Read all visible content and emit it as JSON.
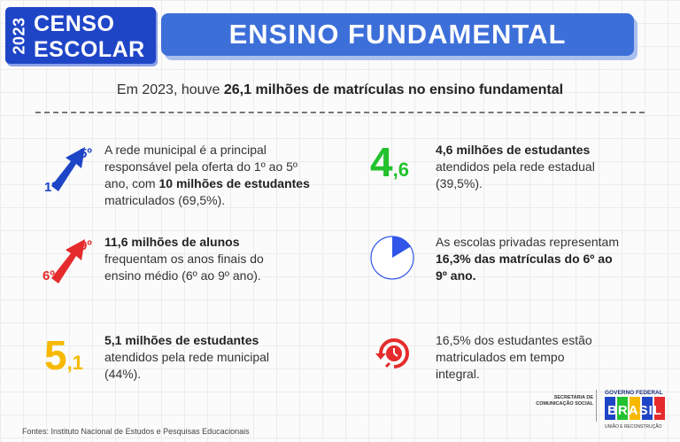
{
  "badge": {
    "year": "2023",
    "line1": "CENSO",
    "line2": "ESCOLAR"
  },
  "title": "ENSINO FUNDAMENTAL",
  "headline": {
    "prefix": "Em 2023, houve ",
    "bold": "26,1 milhões de matrículas no ensino fundamental"
  },
  "items": [
    {
      "icon_name": "arrow-1-to-5-icon",
      "icon_from": "1º",
      "icon_to": "5º",
      "t1": "A rede municipal é a principal responsável pela oferta do 1º ao 5º ano, com ",
      "b1": "10 milhões de estudantes",
      "t2": " matriculados (69,5%)."
    },
    {
      "icon_name": "number-4-6-icon",
      "big_int": "4",
      "big_dec": ",6",
      "b1": "4,6 milhões de estudantes",
      "t2": " atendidos pela rede estadual (39,5%)."
    },
    {
      "icon_name": "arrow-6-to-9-icon",
      "icon_from": "6º",
      "icon_to": "9º",
      "b1": "11,6 milhões de alunos",
      "t2": " frequentam os anos finais do ensino médio (6º ao 9º ano)."
    },
    {
      "icon_name": "pie-16-3-icon",
      "pie_fraction": 0.163,
      "t1": "As escolas privadas representam ",
      "b1": "16,3% das matrículas do 6º ao 9º ano."
    },
    {
      "icon_name": "number-5-1-icon",
      "big_int": "5",
      "big_dec": ",1",
      "b1": "5,1 milhões de estudantes",
      "t2": " atendidos pela rede municipal (44%)."
    },
    {
      "icon_name": "full-time-clock-icon",
      "t1": "16,5% dos estudantes estão matriculados em tempo integral."
    }
  ],
  "footer": "Fontes: Instituto Nacional de Estudos e Pesquisas Educacionais",
  "seal": {
    "secretaria_l1": "SECRETARIA DE",
    "secretaria_l2": "COMUNICAÇÃO SOCIAL",
    "gov_top": "GOVERNO FEDERAL",
    "gov_word": "BRASIL",
    "gov_bottom": "UNIÃO E RECONSTRUÇÃO"
  },
  "colors": {
    "blue": "#1f45c7",
    "title_blue": "#3d6fd9",
    "red": "#e52b2b",
    "green": "#22c22e",
    "yellow": "#f6b900",
    "pie_blue": "#2f56e8"
  }
}
